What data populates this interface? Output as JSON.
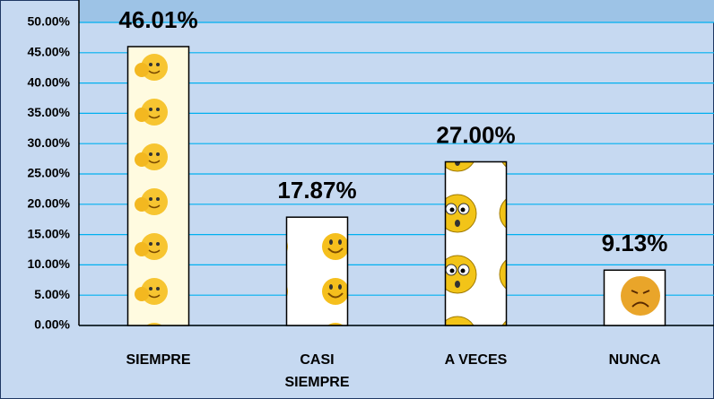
{
  "chart_data": {
    "type": "bar",
    "categories": [
      "SIEMPRE",
      "CASI SIEMPRE",
      "A VECES",
      "NUNCA"
    ],
    "values": [
      46.01,
      17.87,
      27.0,
      9.13
    ],
    "value_labels": [
      "46.01%",
      "17.87%",
      "27.00%",
      "9.13%"
    ],
    "ylim": [
      0,
      50
    ],
    "yticks": [
      {
        "value": 0,
        "label": "0.00%"
      },
      {
        "value": 5,
        "label": "5.00%"
      },
      {
        "value": 10,
        "label": "10.00%"
      },
      {
        "value": 15,
        "label": "15.00%"
      },
      {
        "value": 20,
        "label": "20.00%"
      },
      {
        "value": 25,
        "label": "25.00%"
      },
      {
        "value": 30,
        "label": "30.00%"
      },
      {
        "value": 35,
        "label": "35.00%"
      },
      {
        "value": 40,
        "label": "40.00%"
      },
      {
        "value": 45,
        "label": "45.00%"
      },
      {
        "value": 50,
        "label": "50.00%"
      }
    ],
    "grid": true
  }
}
